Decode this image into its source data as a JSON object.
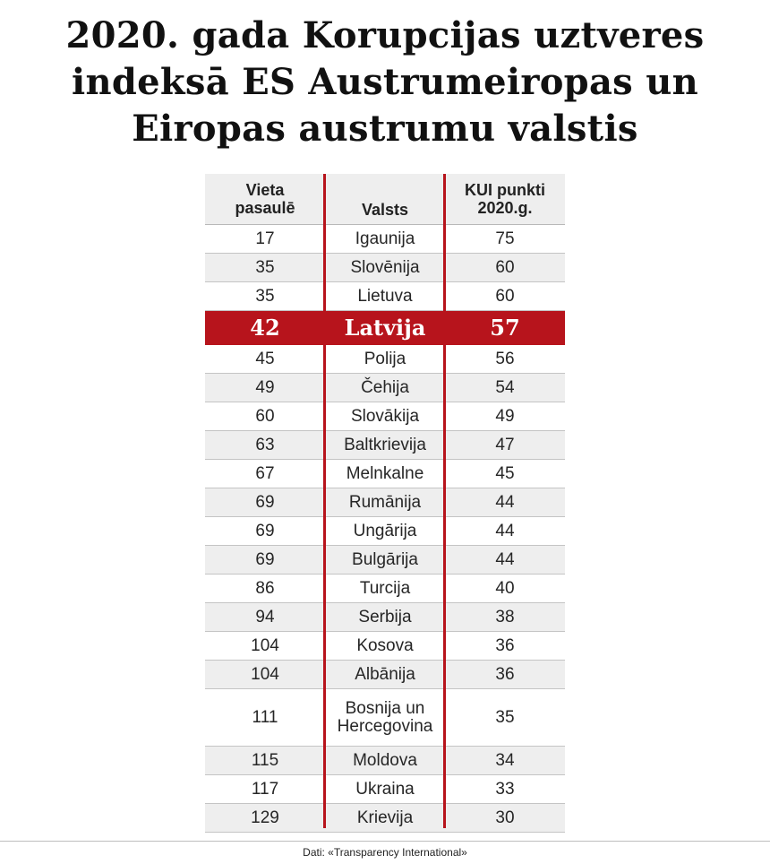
{
  "title": {
    "line1": "2020. gada Korupcijas uztveres",
    "line2": "indeksā ES Austrumeiropas un",
    "line3": "Eiropas austrumu valstis"
  },
  "table": {
    "headers": {
      "rank_l1": "Vieta",
      "rank_l2": "pasaulē",
      "country": "Valsts",
      "score_l1": "KUI punkti",
      "score_l2": "2020.g."
    },
    "highlight_color": "#b7141c",
    "rows": [
      {
        "rank": "17",
        "country": "Igaunija",
        "score": "75"
      },
      {
        "rank": "35",
        "country": "Slovēnija",
        "score": "60"
      },
      {
        "rank": "35",
        "country": "Lietuva",
        "score": "60"
      },
      {
        "rank": "42",
        "country": "Latvija",
        "score": "57",
        "highlight": true
      },
      {
        "rank": "45",
        "country": "Polija",
        "score": "56"
      },
      {
        "rank": "49",
        "country": "Čehija",
        "score": "54"
      },
      {
        "rank": "60",
        "country": "Slovākija",
        "score": "49"
      },
      {
        "rank": "63",
        "country": "Baltkrievija",
        "score": "47"
      },
      {
        "rank": "67",
        "country": "Melnkalne",
        "score": "45"
      },
      {
        "rank": "69",
        "country": "Rumānija",
        "score": "44"
      },
      {
        "rank": "69",
        "country": "Ungārija",
        "score": "44"
      },
      {
        "rank": "69",
        "country": "Bulgārija",
        "score": "44"
      },
      {
        "rank": "86",
        "country": "Turcija",
        "score": "40"
      },
      {
        "rank": "94",
        "country": "Serbija",
        "score": "38"
      },
      {
        "rank": "104",
        "country": "Kosova",
        "score": "36"
      },
      {
        "rank": "104",
        "country": "Albānija",
        "score": "36"
      },
      {
        "rank": "111",
        "country_l1": "Bosnija un",
        "country_l2": "Hercegovina",
        "score": "35"
      },
      {
        "rank": "115",
        "country": "Moldova",
        "score": "34"
      },
      {
        "rank": "117",
        "country": "Ukraina",
        "score": "33"
      },
      {
        "rank": "129",
        "country": "Krievija",
        "score": "30"
      }
    ]
  },
  "footer": {
    "source": "Dati: «Transparency International»"
  }
}
